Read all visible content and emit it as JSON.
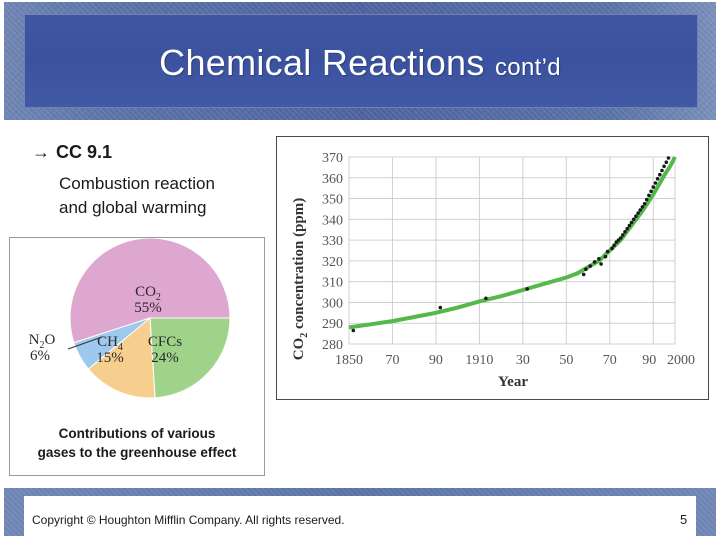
{
  "slide": {
    "title": "Chemical Reactions",
    "title_suffix": "cont’d",
    "bullet_arrow": "→",
    "bullet": "CC 9.1",
    "sub_lines": [
      "Combustion reaction",
      "and global warming"
    ]
  },
  "pie": {
    "caption_lines": [
      "Contributions of various",
      "gases to the greenhouse effect"
    ],
    "slices": [
      {
        "name": "CO",
        "sub": "2",
        "value": 55,
        "label": "55%",
        "color": "#dea7cf"
      },
      {
        "name": "CFCs",
        "value": 24,
        "label": "24%",
        "color": "#9fd38a"
      },
      {
        "name": "CH",
        "sub": "4",
        "value": 15,
        "label": "15%",
        "color": "#f6cf8e"
      },
      {
        "name": "N",
        "sub": "2",
        "name2": "O",
        "value": 6,
        "label": "6%",
        "color": "#9ec9ee"
      }
    ]
  },
  "chart_data": {
    "type": "line",
    "ylabel_parts": [
      "CO",
      "2",
      " concentration (ppm)"
    ],
    "xlabel": "Year",
    "ylim": [
      280,
      370
    ],
    "xlim": [
      1850,
      2000
    ],
    "y_ticks": [
      280,
      290,
      300,
      310,
      320,
      330,
      340,
      350,
      360,
      370
    ],
    "x_ticks": [
      {
        "v": 1850,
        "label": "1850"
      },
      {
        "v": 1870,
        "label": "70"
      },
      {
        "v": 1890,
        "label": "90"
      },
      {
        "v": 1910,
        "label": "1910"
      },
      {
        "v": 1930,
        "label": "30"
      },
      {
        "v": 1950,
        "label": "50"
      },
      {
        "v": 1970,
        "label": "70"
      },
      {
        "v": 1990,
        "label": "90"
      },
      {
        "v": 2000,
        "label": "2000"
      }
    ],
    "grid": true,
    "line_color": "#55b84a",
    "trend": [
      [
        1850,
        288
      ],
      [
        1860,
        289.5
      ],
      [
        1870,
        291
      ],
      [
        1880,
        293
      ],
      [
        1890,
        295
      ],
      [
        1900,
        297.5
      ],
      [
        1910,
        300.5
      ],
      [
        1920,
        303
      ],
      [
        1930,
        306
      ],
      [
        1940,
        309
      ],
      [
        1950,
        312
      ],
      [
        1955,
        314
      ],
      [
        1960,
        317
      ],
      [
        1965,
        320
      ],
      [
        1970,
        325
      ],
      [
        1975,
        330
      ],
      [
        1980,
        337
      ],
      [
        1985,
        344
      ],
      [
        1990,
        352
      ],
      [
        1995,
        361
      ],
      [
        1998,
        366
      ],
      [
        2000,
        370
      ]
    ],
    "points": [
      [
        1852,
        286.5
      ],
      [
        1892,
        297.5
      ],
      [
        1913,
        302
      ],
      [
        1932,
        306.5
      ],
      [
        1958,
        313.5
      ],
      [
        1959,
        316
      ],
      [
        1961,
        317.5
      ],
      [
        1963,
        319.5
      ],
      [
        1965,
        321
      ],
      [
        1966,
        318.5
      ],
      [
        1968,
        322
      ],
      [
        1969,
        324.5
      ],
      [
        1971,
        326
      ],
      [
        1972,
        327.5
      ],
      [
        1973,
        329
      ],
      [
        1974,
        330
      ],
      [
        1975,
        331
      ],
      [
        1976,
        332.5
      ],
      [
        1977,
        334
      ],
      [
        1978,
        335.5
      ],
      [
        1979,
        337
      ],
      [
        1980,
        338.5
      ],
      [
        1981,
        340
      ],
      [
        1982,
        341.5
      ],
      [
        1983,
        343
      ],
      [
        1984,
        344.5
      ],
      [
        1985,
        346
      ],
      [
        1986,
        347.5
      ],
      [
        1987,
        349.5
      ],
      [
        1988,
        351.5
      ],
      [
        1989,
        353.5
      ],
      [
        1990,
        355.5
      ],
      [
        1991,
        357.5
      ],
      [
        1992,
        359.5
      ],
      [
        1993,
        361.5
      ],
      [
        1994,
        363.5
      ],
      [
        1995,
        365.5
      ],
      [
        1996,
        367.5
      ],
      [
        1997,
        369.5
      ]
    ]
  },
  "footer": {
    "copyright": "Copyright © Houghton Mifflin Company. All rights reserved.",
    "page_number": "5"
  }
}
